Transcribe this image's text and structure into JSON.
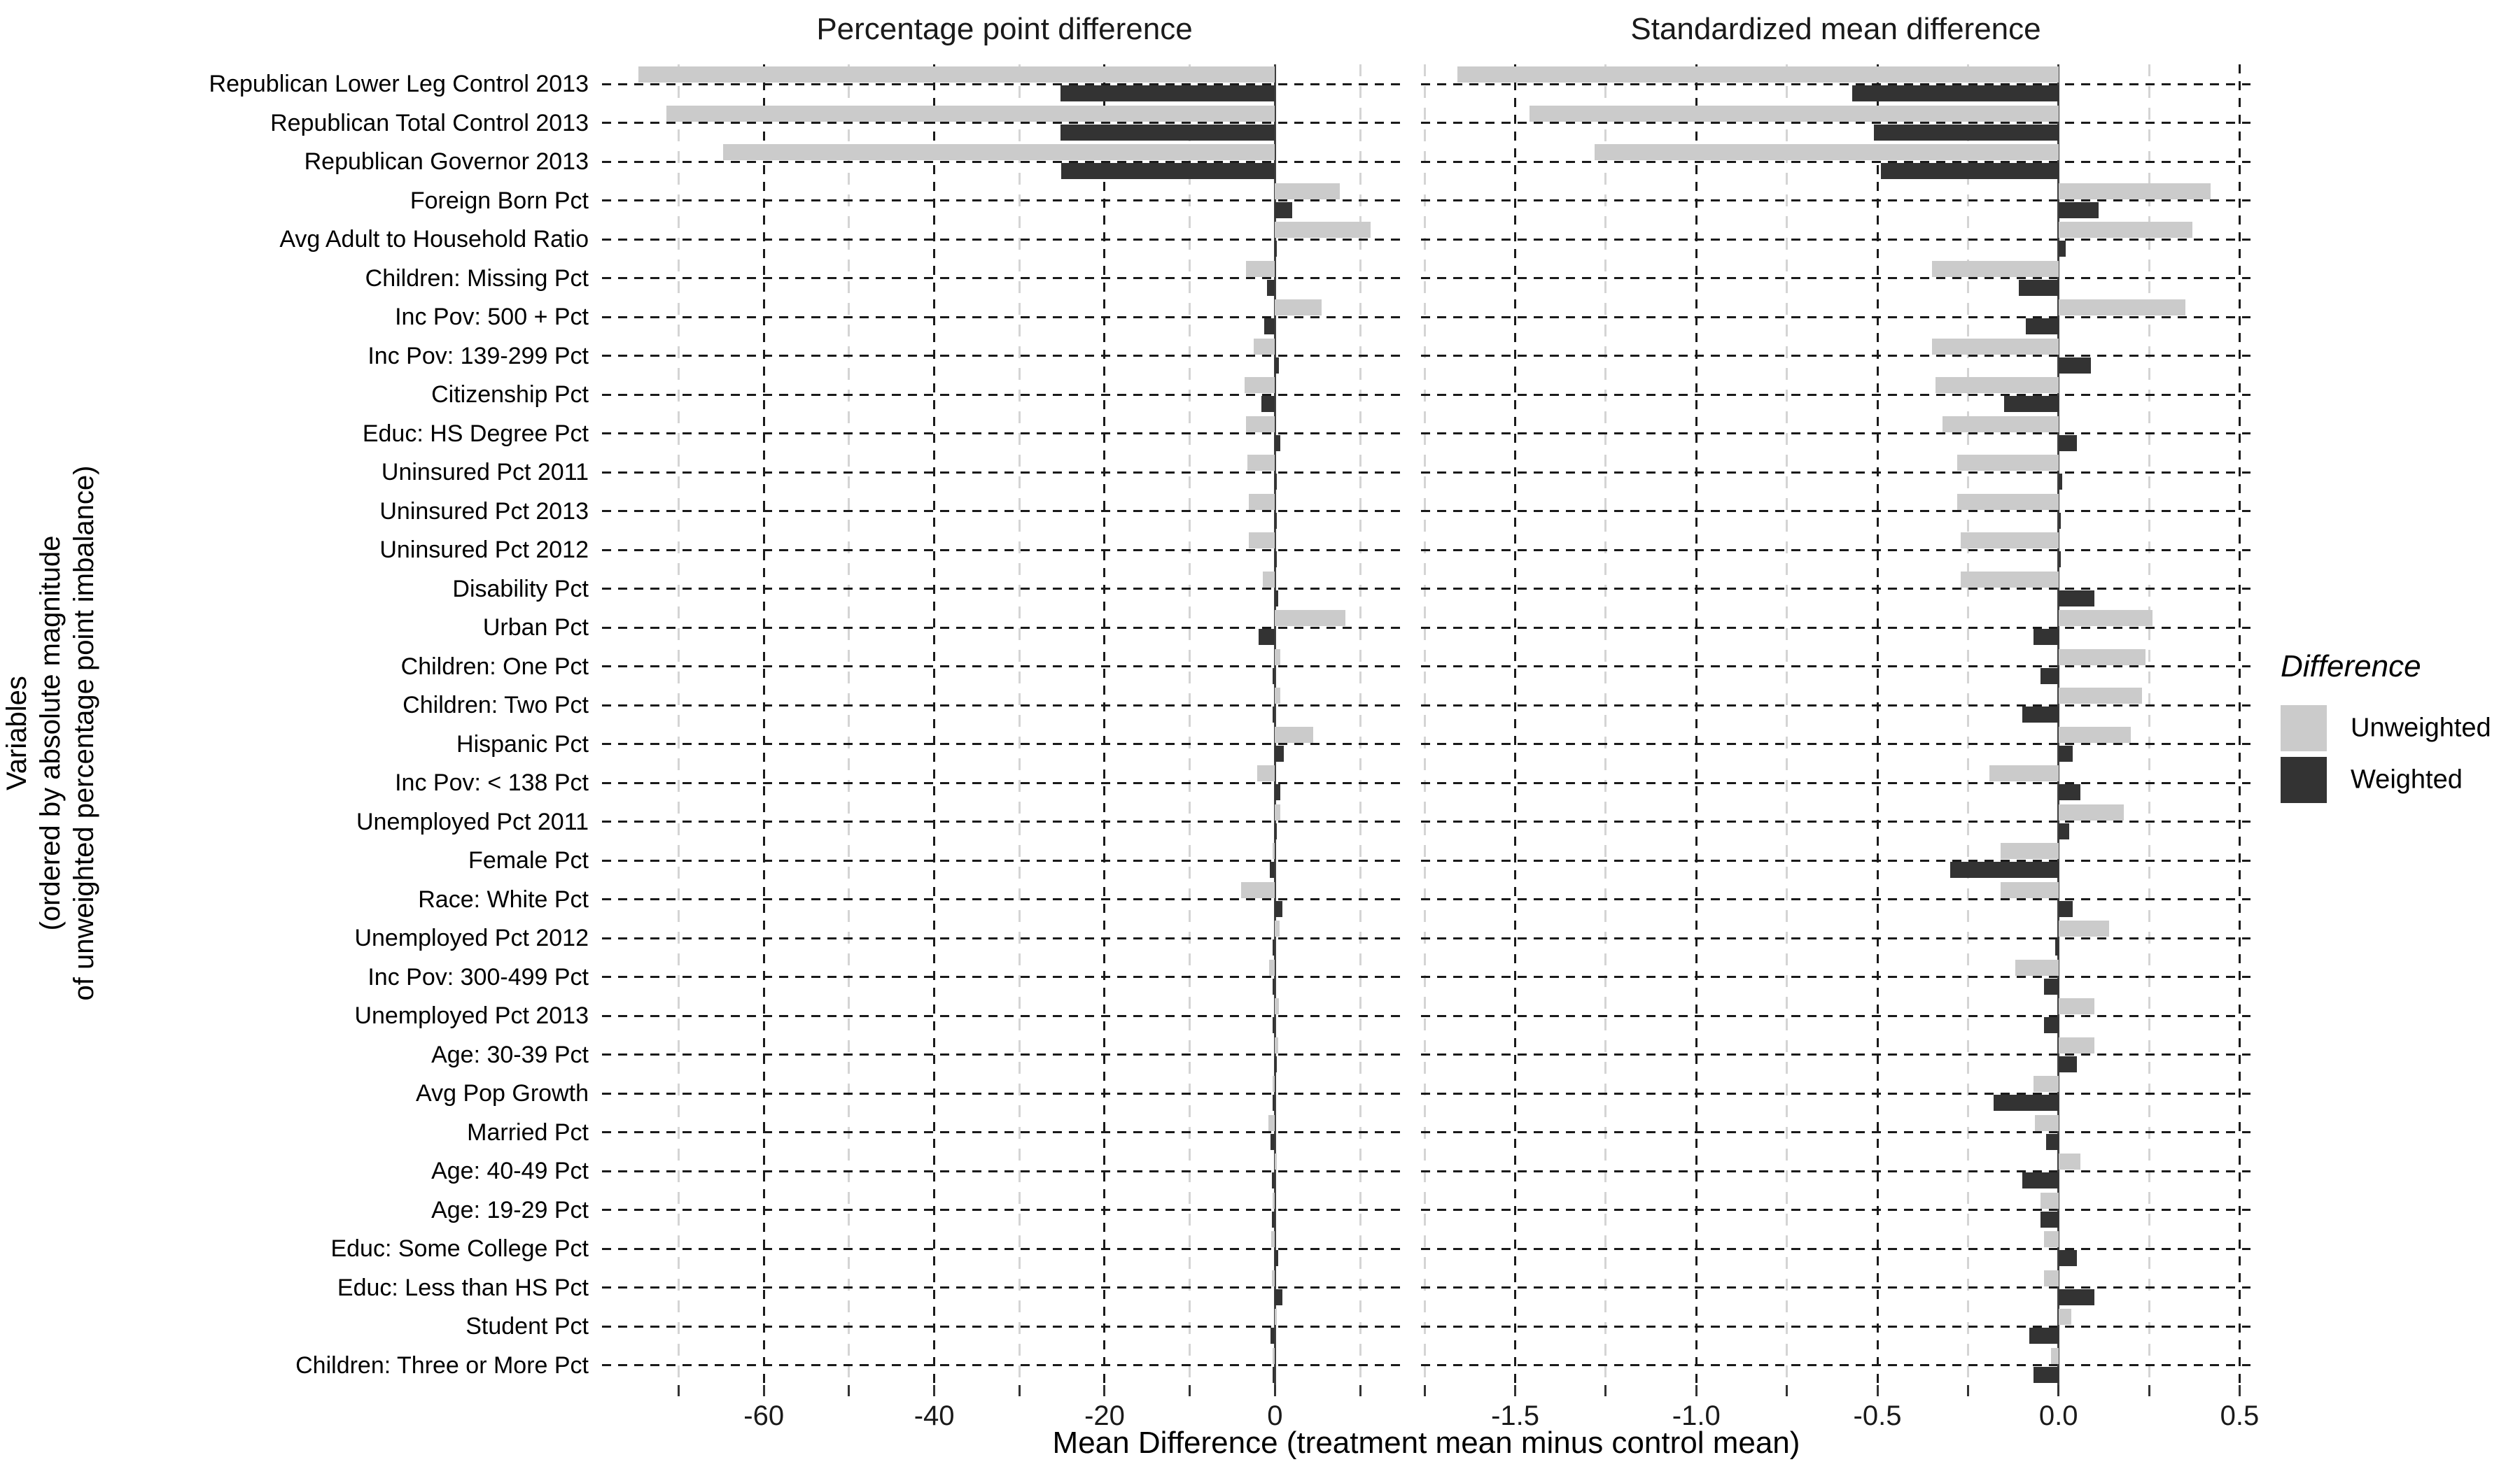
{
  "chart_data": {
    "type": "bar",
    "orientation": "horizontal",
    "facets": 2,
    "grid": "dashed",
    "categories": [
      "Republican Lower Leg Control 2013",
      "Republican Total Control 2013",
      "Republican Governor 2013",
      "Foreign Born Pct",
      "Avg Adult to Household Ratio",
      "Children: Missing Pct",
      "Inc Pov: 500 + Pct",
      "Inc Pov: 139-299 Pct",
      "Citizenship Pct",
      "Educ: HS Degree Pct",
      "Uninsured Pct 2011",
      "Uninsured Pct 2013",
      "Uninsured Pct 2012",
      "Disability Pct",
      "Urban Pct",
      "Children: One Pct",
      "Children: Two Pct",
      "Hispanic Pct",
      "Inc Pov: < 138 Pct",
      "Unemployed Pct 2011",
      "Female Pct",
      "Race: White Pct",
      "Unemployed Pct 2012",
      "Inc Pov: 300-499 Pct",
      "Unemployed Pct 2013",
      "Age: 30-39 Pct",
      "Avg Pop Growth",
      "Married Pct",
      "Age: 40-49 Pct",
      "Age: 19-29 Pct",
      "Educ: Some College Pct",
      "Educ: Less than HS Pct",
      "Student Pct",
      "Children: Three or More Pct"
    ],
    "panels": [
      {
        "title": "Percentage point difference",
        "xlim": [
          -79,
          15.5
        ],
        "major_ticks": [
          -60,
          -40,
          -20,
          0
        ],
        "tick_labels": [
          "-60",
          "-40",
          "-20",
          "0"
        ],
        "minor_ticks": [
          -70,
          -50,
          -30,
          -10,
          10
        ],
        "series": [
          {
            "name": "Unweighted",
            "values": [
              -74.7,
              -71.4,
              -64.8,
              7.6,
              11.2,
              -3.4,
              5.5,
              -2.5,
              -3.6,
              -3.4,
              -3.2,
              -3.1,
              -3.1,
              -1.4,
              8.3,
              0.6,
              0.6,
              4.5,
              -2.1,
              0.6,
              -0.3,
              -4.0,
              0.55,
              -0.7,
              0.45,
              0.35,
              -0.1,
              -0.8,
              0.1,
              -0.3,
              -0.45,
              -0.4,
              0.2,
              -0.1
            ]
          },
          {
            "name": "Weighted",
            "values": [
              -25.2,
              -25.2,
              -25.1,
              2.0,
              0.15,
              -0.9,
              -1.3,
              0.5,
              -1.6,
              0.6,
              0.1,
              0.05,
              0.05,
              0.35,
              -1.9,
              -0.3,
              -0.3,
              1.0,
              0.6,
              0.05,
              -0.6,
              0.9,
              -0.05,
              -0.1,
              -0.05,
              0.1,
              -0.2,
              -0.5,
              -0.35,
              -0.35,
              0.4,
              0.85,
              -0.5,
              -0.25
            ]
          }
        ]
      },
      {
        "title": "Standardized mean difference",
        "xlim": [
          -1.76,
          0.53
        ],
        "major_ticks": [
          -1.5,
          -1.0,
          -0.5,
          0.0,
          0.5
        ],
        "tick_labels": [
          "-1.5",
          "-1.0",
          "-0.5",
          "0.0",
          "0.5"
        ],
        "minor_ticks": [
          -1.75,
          -1.25,
          -0.75,
          -0.25,
          0.25
        ],
        "series": [
          {
            "name": "Unweighted",
            "values": [
              -1.66,
              -1.46,
              -1.28,
              0.42,
              0.37,
              -0.35,
              0.35,
              -0.35,
              -0.34,
              -0.32,
              -0.28,
              -0.28,
              -0.27,
              -0.27,
              0.26,
              0.24,
              0.23,
              0.2,
              -0.19,
              0.18,
              -0.16,
              -0.16,
              0.14,
              -0.12,
              0.1,
              0.1,
              -0.07,
              -0.065,
              0.06,
              -0.05,
              -0.04,
              -0.04,
              0.035,
              -0.02
            ]
          },
          {
            "name": "Weighted",
            "values": [
              -0.57,
              -0.51,
              -0.49,
              0.11,
              0.02,
              -0.11,
              -0.09,
              0.09,
              -0.15,
              0.05,
              0.01,
              0.005,
              0.005,
              0.1,
              -0.07,
              -0.05,
              -0.1,
              0.04,
              0.06,
              0.03,
              -0.3,
              0.04,
              -0.01,
              -0.04,
              -0.04,
              0.05,
              -0.18,
              -0.035,
              -0.1,
              -0.05,
              0.05,
              0.1,
              -0.08,
              -0.07
            ]
          }
        ]
      }
    ],
    "xlabel": "Mean Difference (treatment mean minus control mean)",
    "ylabel_lines": [
      "Variables",
      "(ordered by absolute magnitude",
      "of unweighted percentage point imbalance)"
    ],
    "legend": {
      "title": "Difference",
      "position": "right",
      "entries": [
        {
          "label": "Unweighted",
          "color": "#cbcbcb"
        },
        {
          "label": "Weighted",
          "color": "#333333"
        }
      ]
    },
    "colors": {
      "grid_major": "#1a1a1a",
      "grid_minor": "#d4d4d4",
      "zero_line": "#404040",
      "tick": "#333333",
      "text": "#000000"
    }
  }
}
